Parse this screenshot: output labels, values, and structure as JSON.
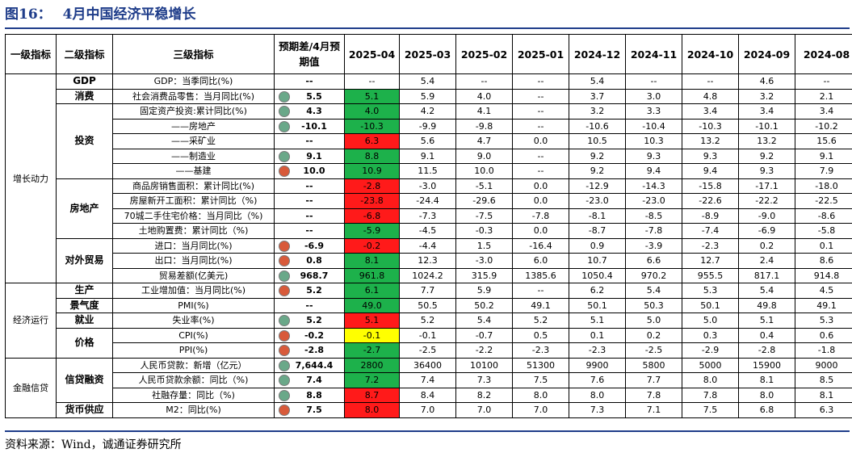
{
  "title": {
    "figure": "图16：",
    "text": "4月中国经济平稳增长"
  },
  "headers": [
    "一级指标",
    "二级指标",
    "三级指标",
    "预期差/4月预期值",
    "2025-04",
    "2025-03",
    "2025-02",
    "2025-01",
    "2024-12",
    "2024-11",
    "2024-10",
    "2024-09",
    "2024-08"
  ],
  "groups": [
    {
      "level1": "增长动力",
      "sections": [
        {
          "level2": "GDP",
          "rows": [
            {
              "l3": "GDP：当季同比(%)",
              "exp": "--",
              "dot": "",
              "apr": "--",
              "color": "",
              "vals": [
                "5.4",
                "--",
                "--",
                "5.4",
                "--",
                "--",
                "4.6",
                "--"
              ]
            }
          ]
        },
        {
          "level2": "消费",
          "rows": [
            {
              "l3": "社会消费品零售：当月同比(%)",
              "exp": "5.5",
              "dot": "green",
              "apr": "5.1",
              "color": "green",
              "vals": [
                "5.9",
                "4.0",
                "--",
                "3.7",
                "3.0",
                "4.8",
                "3.2",
                "2.1"
              ]
            }
          ]
        },
        {
          "level2": "投资",
          "rows": [
            {
              "l3": "固定资产投资:累计同比(%)",
              "exp": "4.3",
              "dot": "green",
              "apr": "4.0",
              "color": "green",
              "vals": [
                "4.2",
                "4.1",
                "--",
                "3.2",
                "3.3",
                "3.4",
                "3.4",
                "3.4"
              ]
            },
            {
              "l3": "——房地产",
              "exp": "-10.1",
              "dot": "green",
              "apr": "-10.3",
              "color": "green",
              "vals": [
                "-9.9",
                "-9.8",
                "--",
                "-10.6",
                "-10.4",
                "-10.3",
                "-10.1",
                "-10.2"
              ]
            },
            {
              "l3": "——采矿业",
              "exp": "--",
              "dot": "",
              "apr": "6.3",
              "color": "red",
              "vals": [
                "5.6",
                "4.7",
                "0.0",
                "10.5",
                "10.3",
                "13.2",
                "13.2",
                "15.6"
              ]
            },
            {
              "l3": "——制造业",
              "exp": "9.1",
              "dot": "green",
              "apr": "8.8",
              "color": "green",
              "vals": [
                "9.1",
                "9.0",
                "--",
                "9.2",
                "9.3",
                "9.3",
                "9.2",
                "9.1"
              ]
            },
            {
              "l3": "——基建",
              "exp": "10.0",
              "dot": "red",
              "apr": "10.9",
              "color": "green",
              "vals": [
                "11.5",
                "10.0",
                "--",
                "9.2",
                "9.4",
                "9.4",
                "9.3",
                "7.9"
              ]
            }
          ]
        },
        {
          "level2": "房地产",
          "rows": [
            {
              "l3": "商品房销售面积：累计同比(%)",
              "exp": "--",
              "dot": "",
              "apr": "-2.8",
              "color": "red",
              "vals": [
                "-3.0",
                "-5.1",
                "0.0",
                "-12.9",
                "-14.3",
                "-15.8",
                "-17.1",
                "-18.0"
              ]
            },
            {
              "l3": "房屋新开工面积：累计同比（%)",
              "exp": "--",
              "dot": "",
              "apr": "-23.8",
              "color": "red",
              "vals": [
                "-24.4",
                "-29.6",
                "0.0",
                "-23.0",
                "-23.0",
                "-22.6",
                "-22.2",
                "-22.5"
              ]
            },
            {
              "l3": "70城二手住宅价格：当月同比（%)",
              "exp": "--",
              "dot": "",
              "apr": "-6.8",
              "color": "red",
              "vals": [
                "-7.3",
                "-7.5",
                "-7.8",
                "-8.1",
                "-8.5",
                "-8.9",
                "-9.0",
                "-8.6"
              ]
            },
            {
              "l3": "土地购置费：累计同比（%)",
              "exp": "--",
              "dot": "",
              "apr": "-5.9",
              "color": "green",
              "vals": [
                "-4.5",
                "-0.3",
                "0.0",
                "-8.7",
                "-7.8",
                "-7.4",
                "-6.9",
                "-5.8"
              ]
            }
          ]
        },
        {
          "level2": "对外贸易",
          "rows": [
            {
              "l3": "进口：当月同比(%)",
              "exp": "-6.9",
              "dot": "red",
              "apr": "-0.2",
              "color": "red",
              "vals": [
                "-4.4",
                "1.5",
                "-16.4",
                "0.9",
                "-3.9",
                "-2.3",
                "0.2",
                "0.1"
              ]
            },
            {
              "l3": "出口：当月同比(%)",
              "exp": "0.8",
              "dot": "red",
              "apr": "8.1",
              "color": "green",
              "vals": [
                "12.3",
                "-3.0",
                "6.0",
                "10.7",
                "6.6",
                "12.7",
                "2.4",
                "8.6"
              ]
            },
            {
              "l3": "贸易差额(亿美元)",
              "exp": "968.7",
              "dot": "green",
              "apr": "961.8",
              "color": "green",
              "vals": [
                "1024.2",
                "315.9",
                "1385.6",
                "1050.4",
                "970.2",
                "955.5",
                "817.1",
                "914.8"
              ]
            }
          ]
        }
      ]
    },
    {
      "level1": "经济运行",
      "sections": [
        {
          "level2": "生产",
          "rows": [
            {
              "l3": "工业增加值：当月同比(%)",
              "exp": "5.2",
              "dot": "red",
              "apr": "6.1",
              "color": "green",
              "vals": [
                "7.7",
                "5.9",
                "--",
                "6.2",
                "5.4",
                "5.3",
                "5.4",
                "4.5"
              ]
            }
          ]
        },
        {
          "level2": "景气度",
          "rows": [
            {
              "l3": "PMI(%)",
              "exp": "--",
              "dot": "",
              "apr": "49.0",
              "color": "green",
              "vals": [
                "50.5",
                "50.2",
                "49.1",
                "50.1",
                "50.3",
                "50.1",
                "49.8",
                "49.1"
              ]
            }
          ]
        },
        {
          "level2": "就业",
          "rows": [
            {
              "l3": "失业率(%)",
              "exp": "5.2",
              "dot": "green",
              "apr": "5.1",
              "color": "red",
              "vals": [
                "5.2",
                "5.4",
                "5.2",
                "5.1",
                "5.0",
                "5.0",
                "5.1",
                "5.3"
              ]
            }
          ]
        },
        {
          "level2": "价格",
          "rows": [
            {
              "l3": "CPI(%)",
              "exp": "-0.2",
              "dot": "red",
              "apr": "-0.1",
              "color": "yellow",
              "vals": [
                "-0.1",
                "-0.7",
                "0.5",
                "0.1",
                "0.2",
                "0.3",
                "0.4",
                "0.6"
              ]
            },
            {
              "l3": "PPI(%)",
              "exp": "-2.8",
              "dot": "red",
              "apr": "-2.7",
              "color": "green",
              "vals": [
                "-2.5",
                "-2.2",
                "-2.3",
                "-2.3",
                "-2.5",
                "-2.9",
                "-2.8",
                "-1.8"
              ]
            }
          ]
        }
      ]
    },
    {
      "level1": "金融信贷",
      "sections": [
        {
          "level2": "信贷融资",
          "rows": [
            {
              "l3": "人民币贷款：新增（亿元）",
              "exp": "7,644.4",
              "dot": "green",
              "apr": "2800",
              "color": "green",
              "vals": [
                "36400",
                "10100",
                "51300",
                "9900",
                "5800",
                "5000",
                "15900",
                "9000"
              ]
            },
            {
              "l3": "人民币贷款余额：同比（%)",
              "exp": "7.4",
              "dot": "green",
              "apr": "7.2",
              "color": "green",
              "vals": [
                "7.4",
                "7.3",
                "7.5",
                "7.6",
                "7.7",
                "8.0",
                "8.1",
                "8.5"
              ]
            },
            {
              "l3": "社融存量：同比（%)",
              "exp": "8.8",
              "dot": "green",
              "apr": "8.7",
              "color": "red",
              "vals": [
                "8.4",
                "8.2",
                "8.0",
                "8.0",
                "7.8",
                "7.8",
                "8.0",
                "8.1"
              ]
            }
          ]
        },
        {
          "level2": "货币供应",
          "rows": [
            {
              "l3": "M2：同比(%)",
              "exp": "7.5",
              "dot": "red",
              "apr": "8.0",
              "color": "red",
              "vals": [
                "7.0",
                "7.0",
                "7.0",
                "7.3",
                "7.1",
                "7.5",
                "6.8",
                "6.3"
              ]
            }
          ]
        }
      ]
    }
  ],
  "footer": "资料来源：Wind，诚通证券研究所"
}
